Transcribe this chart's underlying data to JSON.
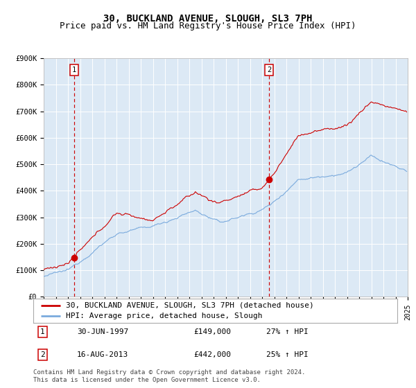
{
  "title": "30, BUCKLAND AVENUE, SLOUGH, SL3 7PH",
  "subtitle": "Price paid vs. HM Land Registry's House Price Index (HPI)",
  "ylim": [
    0,
    900000
  ],
  "yticks": [
    0,
    100000,
    200000,
    300000,
    400000,
    500000,
    600000,
    700000,
    800000,
    900000
  ],
  "ytick_labels": [
    "£0",
    "£100K",
    "£200K",
    "£300K",
    "£400K",
    "£500K",
    "£600K",
    "£700K",
    "£800K",
    "£900K"
  ],
  "bg_color": "#dce9f5",
  "line1_color": "#cc0000",
  "line2_color": "#7aaadd",
  "marker_color": "#cc0000",
  "vline_color": "#cc0000",
  "sale1_year": 1997.5,
  "sale1_price": 149000,
  "sale2_year": 2013.62,
  "sale2_price": 442000,
  "legend1": "30, BUCKLAND AVENUE, SLOUGH, SL3 7PH (detached house)",
  "legend2": "HPI: Average price, detached house, Slough",
  "anno1_date": "30-JUN-1997",
  "anno1_price": "£149,000",
  "anno1_hpi": "27% ↑ HPI",
  "anno2_date": "16-AUG-2013",
  "anno2_price": "£442,000",
  "anno2_hpi": "25% ↑ HPI",
  "footer": "Contains HM Land Registry data © Crown copyright and database right 2024.\nThis data is licensed under the Open Government Licence v3.0.",
  "title_fontsize": 10,
  "subtitle_fontsize": 9,
  "tick_fontsize": 7.5,
  "legend_fontsize": 8,
  "anno_fontsize": 8,
  "footer_fontsize": 6.5
}
